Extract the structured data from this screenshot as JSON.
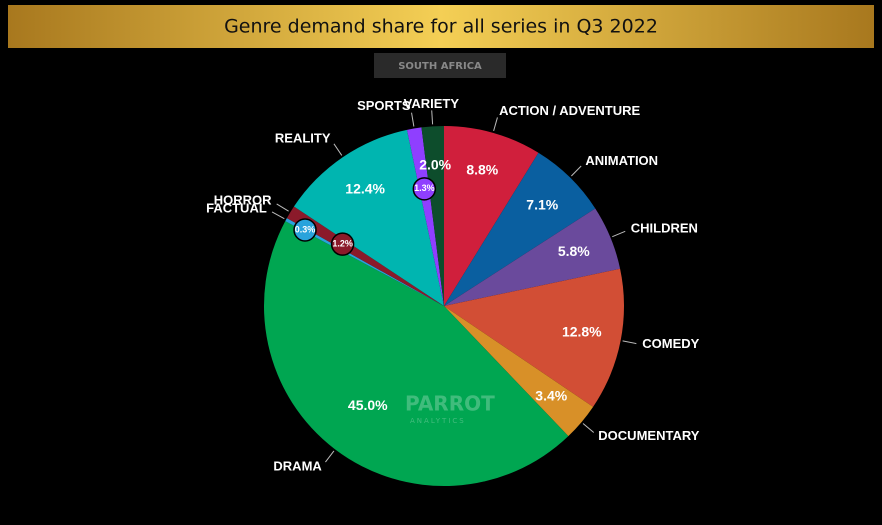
{
  "chart_data": {
    "type": "pie",
    "title": "Genre demand share for all series in Q3 2022",
    "subtitle": "SOUTH AFRICA",
    "watermark": [
      "PARROT",
      "ANALYTICS"
    ],
    "categories": [
      "ACTION / ADVENTURE",
      "ANIMATION",
      "CHILDREN",
      "COMEDY",
      "DOCUMENTARY",
      "DRAMA",
      "FACTUAL",
      "HORROR",
      "REALITY",
      "SPORTS",
      "VARIETY"
    ],
    "values": [
      8.8,
      7.1,
      5.8,
      12.8,
      3.4,
      45.0,
      0.3,
      1.2,
      12.4,
      1.3,
      2.0
    ],
    "value_labels": [
      "8.8%",
      "7.1%",
      "5.8%",
      "12.8%",
      "3.4%",
      "45.0%",
      "0.3%",
      "1.2%",
      "12.4%",
      "1.3%",
      "2.0%"
    ],
    "colors": [
      "#d01f3c",
      "#0a5fa0",
      "#6a4a9c",
      "#d24e35",
      "#d89028",
      "#00a651",
      "#29a3dc",
      "#8b1a2a",
      "#00b5b0",
      "#8f3fff",
      "#0d4d2c"
    ]
  }
}
